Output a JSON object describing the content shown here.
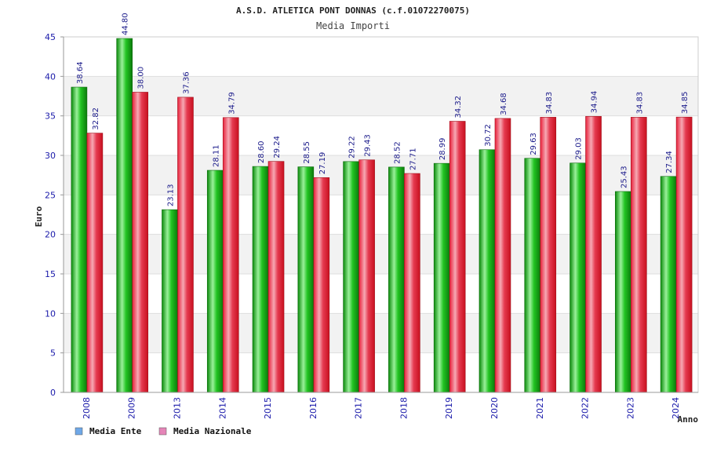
{
  "chart_data": {
    "type": "bar",
    "title": "A.S.D. ATLETICA PONT DONNAS (c.f.01072270075)",
    "subtitle": "Media Importi",
    "xlabel": "Anno",
    "ylabel": "Euro",
    "ylim": [
      0,
      45
    ],
    "yticks": [
      0,
      5,
      10,
      15,
      20,
      25,
      30,
      35,
      40,
      45
    ],
    "grid": true,
    "legend_position": "bottom-left",
    "categories": [
      "2008",
      "2009",
      "2013",
      "2014",
      "2015",
      "2016",
      "2017",
      "2018",
      "2019",
      "2020",
      "2021",
      "2022",
      "2023",
      "2024"
    ],
    "series": [
      {
        "name": "Media Ente",
        "legend_color": "#6fa8e8",
        "bar_color": "#14b814",
        "values": [
          38.64,
          44.8,
          23.13,
          28.11,
          28.6,
          28.55,
          29.22,
          28.52,
          28.99,
          30.72,
          29.63,
          29.03,
          25.43,
          27.34
        ],
        "labels": [
          "38.64",
          "44.80",
          "23.13",
          "28.11",
          "28.60",
          "28.55",
          "29.22",
          "28.52",
          "28.99",
          "30.72",
          "29.63",
          "29.03",
          "25.43",
          "27.34"
        ]
      },
      {
        "name": "Media Nazionale",
        "legend_color": "#e585b8",
        "bar_color": "#e8203a",
        "values": [
          32.82,
          38.0,
          37.36,
          34.79,
          29.24,
          27.19,
          29.43,
          27.71,
          34.32,
          34.68,
          34.83,
          34.94,
          34.83,
          34.85
        ],
        "labels": [
          "32.82",
          "38.00",
          "37.36",
          "34.79",
          "29.24",
          "27.19",
          "29.43",
          "27.71",
          "34.32",
          "34.68",
          "34.83",
          "34.94",
          "34.83",
          "34.85"
        ]
      }
    ]
  },
  "colors": {
    "axis_text": "#1a1aaa",
    "band_light": "#f2f2f2",
    "band_white": "#ffffff",
    "title_text": "#222222"
  }
}
